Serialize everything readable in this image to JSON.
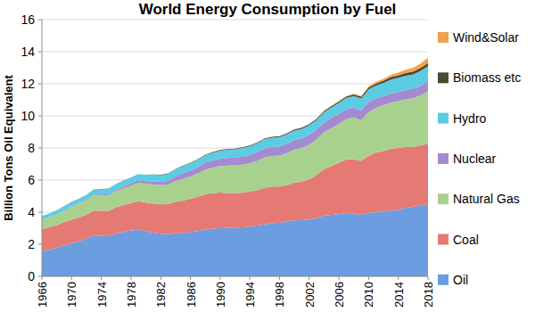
{
  "chart_data": {
    "type": "area",
    "title": "World Energy Consumption by Fuel",
    "y_label": "Billion Tons Oil Equivalent",
    "stacked": true,
    "grid": true,
    "legend": "right",
    "x": [
      1966,
      1967,
      1968,
      1969,
      1970,
      1971,
      1972,
      1973,
      1974,
      1975,
      1976,
      1977,
      1978,
      1979,
      1980,
      1981,
      1982,
      1983,
      1984,
      1985,
      1986,
      1987,
      1988,
      1989,
      1990,
      1991,
      1992,
      1993,
      1994,
      1995,
      1996,
      1997,
      1998,
      1999,
      2000,
      2001,
      2002,
      2003,
      2004,
      2005,
      2006,
      2007,
      2008,
      2009,
      2010,
      2011,
      2012,
      2013,
      2014,
      2015,
      2016,
      2017,
      2018
    ],
    "xlim": [
      1966,
      2018
    ],
    "xticks": [
      1966,
      1970,
      1974,
      1978,
      1982,
      1986,
      1990,
      1994,
      1998,
      2002,
      2006,
      2010,
      2014,
      2018
    ],
    "ylim": [
      0,
      16
    ],
    "yticks": [
      0,
      2,
      4,
      6,
      8,
      10,
      12,
      14,
      16
    ],
    "series": [
      {
        "name": "Oil",
        "color": "#6b9de0",
        "values": [
          1.55,
          1.65,
          1.78,
          1.92,
          2.06,
          2.18,
          2.35,
          2.55,
          2.52,
          2.5,
          2.66,
          2.76,
          2.86,
          2.9,
          2.8,
          2.72,
          2.65,
          2.63,
          2.68,
          2.68,
          2.76,
          2.82,
          2.92,
          2.96,
          3.0,
          3.02,
          3.04,
          3.05,
          3.1,
          3.16,
          3.24,
          3.32,
          3.34,
          3.42,
          3.48,
          3.5,
          3.54,
          3.62,
          3.78,
          3.84,
          3.88,
          3.94,
          3.92,
          3.84,
          3.96,
          4.0,
          4.04,
          4.1,
          4.14,
          4.26,
          4.34,
          4.42,
          4.5
        ]
      },
      {
        "name": "Coal",
        "color": "#e57a74",
        "values": [
          1.4,
          1.4,
          1.42,
          1.45,
          1.48,
          1.48,
          1.5,
          1.55,
          1.56,
          1.58,
          1.64,
          1.68,
          1.7,
          1.78,
          1.8,
          1.82,
          1.84,
          1.88,
          1.96,
          2.04,
          2.08,
          2.14,
          2.2,
          2.22,
          2.22,
          2.18,
          2.16,
          2.16,
          2.18,
          2.22,
          2.28,
          2.28,
          2.26,
          2.28,
          2.36,
          2.4,
          2.5,
          2.7,
          2.9,
          3.04,
          3.2,
          3.34,
          3.38,
          3.36,
          3.56,
          3.72,
          3.76,
          3.84,
          3.86,
          3.8,
          3.72,
          3.74,
          3.76
        ]
      },
      {
        "name": "Natural Gas",
        "color": "#a9d18e",
        "values": [
          0.58,
          0.62,
          0.67,
          0.73,
          0.8,
          0.85,
          0.9,
          0.95,
          0.96,
          0.97,
          1.02,
          1.05,
          1.09,
          1.15,
          1.17,
          1.19,
          1.19,
          1.21,
          1.3,
          1.35,
          1.38,
          1.45,
          1.52,
          1.6,
          1.66,
          1.7,
          1.72,
          1.75,
          1.76,
          1.82,
          1.9,
          1.9,
          1.93,
          1.98,
          2.06,
          2.1,
          2.16,
          2.22,
          2.3,
          2.36,
          2.42,
          2.52,
          2.6,
          2.54,
          2.72,
          2.78,
          2.86,
          2.9,
          2.92,
          2.98,
          3.04,
          3.12,
          3.28
        ]
      },
      {
        "name": "Nuclear",
        "color": "#a48ad0",
        "values": [
          0.01,
          0.01,
          0.01,
          0.01,
          0.02,
          0.03,
          0.04,
          0.05,
          0.06,
          0.08,
          0.1,
          0.12,
          0.14,
          0.15,
          0.16,
          0.19,
          0.21,
          0.24,
          0.29,
          0.34,
          0.37,
          0.4,
          0.43,
          0.44,
          0.45,
          0.48,
          0.48,
          0.5,
          0.51,
          0.53,
          0.55,
          0.55,
          0.56,
          0.58,
          0.58,
          0.6,
          0.61,
          0.6,
          0.62,
          0.63,
          0.63,
          0.62,
          0.62,
          0.61,
          0.63,
          0.6,
          0.56,
          0.56,
          0.57,
          0.58,
          0.59,
          0.6,
          0.61
        ]
      },
      {
        "name": "Hydro",
        "color": "#5ccbe3",
        "values": [
          0.22,
          0.23,
          0.24,
          0.25,
          0.27,
          0.28,
          0.29,
          0.3,
          0.33,
          0.33,
          0.34,
          0.35,
          0.37,
          0.39,
          0.4,
          0.41,
          0.42,
          0.43,
          0.45,
          0.46,
          0.47,
          0.47,
          0.49,
          0.49,
          0.5,
          0.52,
          0.52,
          0.54,
          0.55,
          0.57,
          0.58,
          0.59,
          0.59,
          0.6,
          0.61,
          0.6,
          0.61,
          0.61,
          0.64,
          0.66,
          0.69,
          0.7,
          0.72,
          0.73,
          0.78,
          0.79,
          0.83,
          0.86,
          0.88,
          0.88,
          0.9,
          0.92,
          0.95
        ]
      },
      {
        "name": "Biomass etc",
        "color": "#4b4a31",
        "values": [
          0.01,
          0.01,
          0.01,
          0.01,
          0.01,
          0.01,
          0.01,
          0.01,
          0.01,
          0.01,
          0.01,
          0.01,
          0.01,
          0.01,
          0.01,
          0.02,
          0.02,
          0.02,
          0.02,
          0.03,
          0.03,
          0.03,
          0.03,
          0.04,
          0.04,
          0.04,
          0.04,
          0.04,
          0.05,
          0.05,
          0.05,
          0.05,
          0.05,
          0.06,
          0.06,
          0.06,
          0.06,
          0.07,
          0.07,
          0.08,
          0.08,
          0.09,
          0.1,
          0.11,
          0.12,
          0.13,
          0.14,
          0.15,
          0.16,
          0.17,
          0.18,
          0.18,
          0.19
        ]
      },
      {
        "name": "Wind&Solar",
        "color": "#f2a24c",
        "values": [
          0,
          0,
          0,
          0,
          0,
          0,
          0,
          0,
          0,
          0,
          0,
          0,
          0,
          0,
          0,
          0,
          0,
          0,
          0,
          0,
          0,
          0,
          0,
          0,
          0,
          0,
          0,
          0,
          0,
          0,
          0,
          0,
          0.01,
          0.01,
          0.01,
          0.01,
          0.01,
          0.02,
          0.02,
          0.02,
          0.03,
          0.04,
          0.05,
          0.06,
          0.08,
          0.1,
          0.12,
          0.15,
          0.17,
          0.2,
          0.23,
          0.28,
          0.33
        ]
      }
    ]
  }
}
